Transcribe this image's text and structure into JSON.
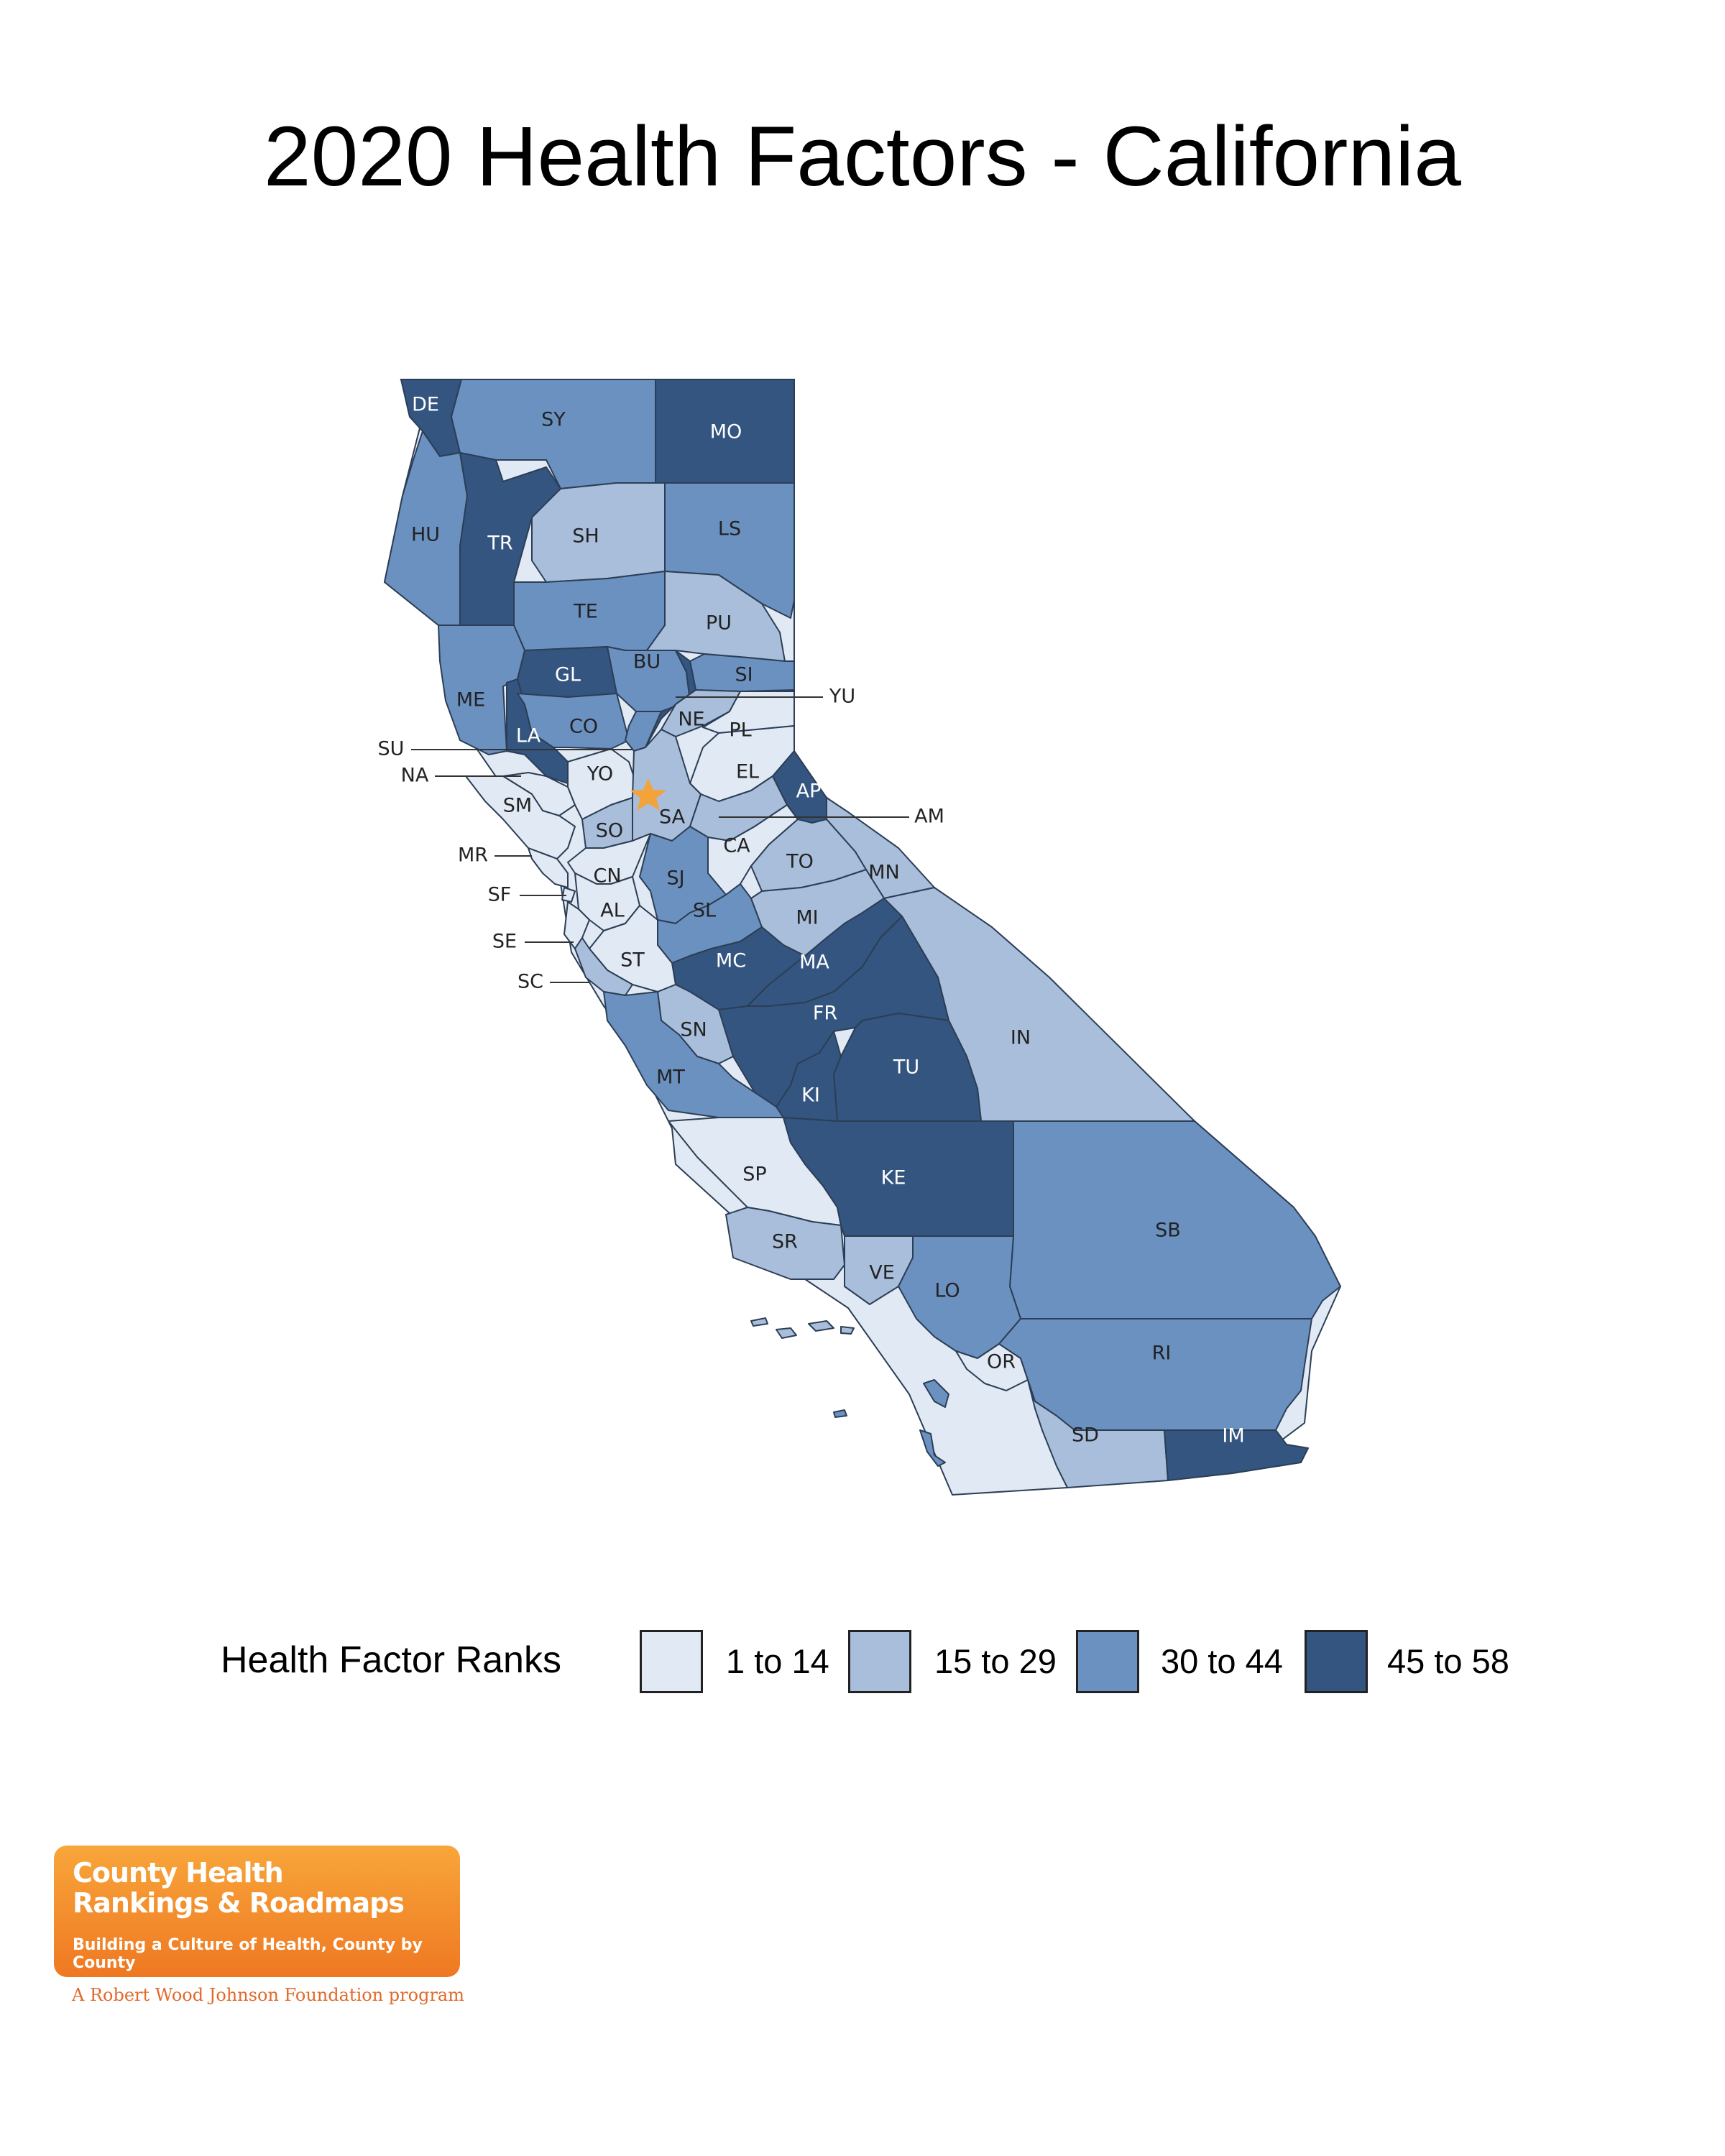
{
  "title": "2020 Health Factors - California",
  "legend": {
    "title": "Health Factor Ranks",
    "classes": [
      {
        "label": "1 to 14",
        "color": "#e1e9f4"
      },
      {
        "label": "15 to 29",
        "color": "#a8bedb"
      },
      {
        "label": "30 to 44",
        "color": "#6b91c1"
      },
      {
        "label": "45 to 58",
        "color": "#34557f"
      }
    ]
  },
  "capital_marker": "star-icon",
  "counties": [
    {
      "code": "DE",
      "class": 3
    },
    {
      "code": "SY",
      "class": 2
    },
    {
      "code": "MO",
      "class": 3
    },
    {
      "code": "HU",
      "class": 2
    },
    {
      "code": "TR",
      "class": 3
    },
    {
      "code": "SH",
      "class": 1
    },
    {
      "code": "LS",
      "class": 2
    },
    {
      "code": "TE",
      "class": 2
    },
    {
      "code": "PU",
      "class": 1
    },
    {
      "code": "ME",
      "class": 2
    },
    {
      "code": "GL",
      "class": 3
    },
    {
      "code": "BU",
      "class": 2
    },
    {
      "code": "SI",
      "class": 2
    },
    {
      "code": "YU",
      "class": 3
    },
    {
      "code": "LA",
      "class": 3
    },
    {
      "code": "CO",
      "class": 2
    },
    {
      "code": "NE",
      "class": 1
    },
    {
      "code": "PL",
      "class": 0
    },
    {
      "code": "SU",
      "class": 2
    },
    {
      "code": "NA",
      "class": 0
    },
    {
      "code": "YO",
      "class": 0
    },
    {
      "code": "EL",
      "class": 0
    },
    {
      "code": "AP",
      "class": 3
    },
    {
      "code": "SM",
      "class": 0
    },
    {
      "code": "SA",
      "class": 1
    },
    {
      "code": "AM",
      "class": 1
    },
    {
      "code": "SO",
      "class": 1
    },
    {
      "code": "CA",
      "class": 0
    },
    {
      "code": "MR",
      "class": 0
    },
    {
      "code": "TO",
      "class": 1
    },
    {
      "code": "MN",
      "class": 1
    },
    {
      "code": "CN",
      "class": 0
    },
    {
      "code": "SJ",
      "class": 2
    },
    {
      "code": "SF",
      "class": 0
    },
    {
      "code": "AL",
      "class": 0
    },
    {
      "code": "SL",
      "class": 2
    },
    {
      "code": "MI",
      "class": 1
    },
    {
      "code": "SE",
      "class": 0
    },
    {
      "code": "MC",
      "class": 3
    },
    {
      "code": "MA",
      "class": 3
    },
    {
      "code": "ST",
      "class": 0
    },
    {
      "code": "SC",
      "class": 1
    },
    {
      "code": "IN",
      "class": 1
    },
    {
      "code": "FR",
      "class": 3
    },
    {
      "code": "SN",
      "class": 1
    },
    {
      "code": "TU",
      "class": 3
    },
    {
      "code": "MT",
      "class": 2
    },
    {
      "code": "KI",
      "class": 3
    },
    {
      "code": "SP",
      "class": 0
    },
    {
      "code": "KE",
      "class": 3
    },
    {
      "code": "SB",
      "class": 2
    },
    {
      "code": "SR",
      "class": 1
    },
    {
      "code": "VE",
      "class": 1
    },
    {
      "code": "LO",
      "class": 2
    },
    {
      "code": "OR",
      "class": 0
    },
    {
      "code": "RI",
      "class": 2
    },
    {
      "code": "SD",
      "class": 1
    },
    {
      "code": "IM",
      "class": 3
    }
  ],
  "logo": {
    "line1": "County Health",
    "line2": "Rankings & Roadmaps",
    "tagline": "Building a Culture of Health, County by County",
    "program": "A Robert Wood Johnson Foundation program"
  }
}
